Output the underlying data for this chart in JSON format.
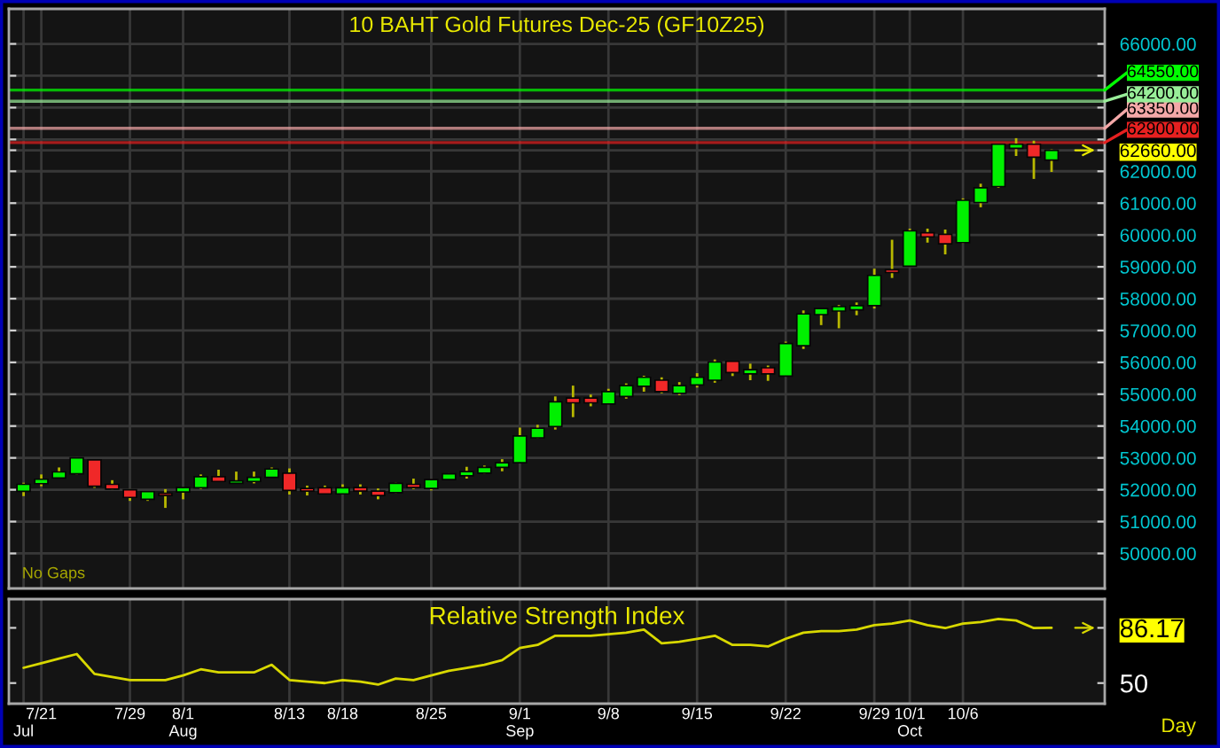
{
  "chart_data": [
    {
      "type": "candlestick",
      "title": "10 BAHT Gold Futures Dec-25 (GF10Z25)",
      "categories": [
        null,
        null,
        null,
        null,
        null,
        null,
        null,
        null,
        null,
        null,
        null,
        null,
        null,
        null,
        null,
        null,
        null,
        null,
        null,
        null,
        null,
        null,
        null,
        null,
        null,
        null,
        null,
        null,
        null,
        null,
        null,
        null,
        null,
        null,
        null,
        null,
        null,
        null,
        null,
        null,
        null,
        null,
        null,
        null,
        null,
        null,
        null,
        null,
        null,
        null,
        null,
        null,
        null,
        null,
        null,
        null,
        null,
        null,
        null
      ],
      "ohlc": [
        [
          51950,
          52220,
          51800,
          52170
        ],
        [
          52190,
          52480,
          52110,
          52330
        ],
        [
          52370,
          52700,
          52350,
          52560
        ],
        [
          52500,
          53020,
          52480,
          53000
        ],
        [
          52940,
          52960,
          52060,
          52110
        ],
        [
          52170,
          52300,
          52000,
          52020
        ],
        [
          52000,
          52020,
          51650,
          51760
        ],
        [
          51700,
          51950,
          51650,
          51940
        ],
        [
          51890,
          52020,
          51430,
          51820
        ],
        [
          51930,
          52080,
          51700,
          52070
        ],
        [
          52060,
          52480,
          52020,
          52410
        ],
        [
          52410,
          52630,
          52240,
          52260
        ],
        [
          52200,
          52570,
          52200,
          52280
        ],
        [
          52260,
          52570,
          52200,
          52390
        ],
        [
          52390,
          52700,
          52380,
          52650
        ],
        [
          52520,
          52670,
          51850,
          51980
        ],
        [
          52040,
          52130,
          51820,
          51960
        ],
        [
          52060,
          52130,
          51860,
          51870
        ],
        [
          51870,
          52170,
          51850,
          52060
        ],
        [
          52070,
          52170,
          51850,
          51960
        ],
        [
          51960,
          52040,
          51700,
          51820
        ],
        [
          51910,
          52220,
          51890,
          52200
        ],
        [
          52170,
          52350,
          52020,
          52070
        ],
        [
          52040,
          52330,
          51980,
          52320
        ],
        [
          52320,
          52520,
          52300,
          52500
        ],
        [
          52440,
          52720,
          52350,
          52570
        ],
        [
          52520,
          52760,
          52500,
          52700
        ],
        [
          52700,
          52960,
          52580,
          52850
        ],
        [
          52850,
          53950,
          52840,
          53690
        ],
        [
          53630,
          54040,
          53620,
          53930
        ],
        [
          53980,
          54930,
          53890,
          54760
        ],
        [
          54880,
          55270,
          54280,
          54730
        ],
        [
          54880,
          54990,
          54620,
          54730
        ],
        [
          54690,
          55170,
          54680,
          55080
        ],
        [
          54930,
          55340,
          54860,
          55270
        ],
        [
          55250,
          55580,
          55080,
          55530
        ],
        [
          55440,
          55530,
          55030,
          55080
        ],
        [
          55030,
          55380,
          54970,
          55270
        ],
        [
          55290,
          55660,
          55210,
          55530
        ],
        [
          55440,
          56090,
          55360,
          56010
        ],
        [
          56030,
          56050,
          55570,
          55680
        ],
        [
          55640,
          55960,
          55440,
          55770
        ],
        [
          55830,
          55900,
          55420,
          55640
        ],
        [
          55570,
          56650,
          55550,
          56590
        ],
        [
          56520,
          57630,
          56420,
          57520
        ],
        [
          57500,
          57690,
          57170,
          57690
        ],
        [
          57610,
          57800,
          57070,
          57750
        ],
        [
          57650,
          57880,
          57480,
          57780
        ],
        [
          57780,
          58940,
          57690,
          58730
        ],
        [
          58910,
          59850,
          58650,
          58820
        ],
        [
          59020,
          60200,
          59000,
          60130
        ],
        [
          60070,
          60200,
          59760,
          59940
        ],
        [
          60020,
          60170,
          59390,
          59720
        ],
        [
          59760,
          61150,
          59740,
          61090
        ],
        [
          61020,
          61610,
          60870,
          61480
        ],
        [
          61520,
          62870,
          61480,
          62850
        ],
        [
          62720,
          63040,
          62480,
          62850
        ],
        [
          62850,
          62960,
          61760,
          62440
        ],
        [
          62350,
          62690,
          61980,
          62660
        ]
      ],
      "colors": [
        "#00f000",
        "#00f000",
        "#00f000",
        "#00f000",
        "#f02828",
        "#f02828",
        "#f02828",
        "#00f000",
        "#f02828",
        "#00f000",
        "#00f000",
        "#f02828",
        "#00f000",
        "#00f000",
        "#00f000",
        "#f02828",
        "#f02828",
        "#f02828",
        "#00f000",
        "#f02828",
        "#f02828",
        "#00f000",
        "#f02828",
        "#00f000",
        "#00f000",
        "#00f000",
        "#00f000",
        "#00f000",
        "#00f000",
        "#00f000",
        "#00f000",
        "#f02828",
        "#f02828",
        "#00f000",
        "#00f000",
        "#00f000",
        "#f02828",
        "#00f000",
        "#00f000",
        "#00f000",
        "#f02828",
        "#00f000",
        "#f02828",
        "#00f000",
        "#00f000",
        "#00f000",
        "#00f000",
        "#00f000",
        "#00f000",
        "#f02828",
        "#00f000",
        "#f02828",
        "#f02828",
        "#00f000",
        "#00f000",
        "#00f000",
        "#00f000",
        "#f02828",
        "#00f000"
      ],
      "ylim": [
        48900,
        67100
      ],
      "yticks": [
        {
          "value": 50000,
          "label": "50000.00"
        },
        {
          "value": 51000,
          "label": "51000.00"
        },
        {
          "value": 52000,
          "label": "52000.00"
        },
        {
          "value": 53000,
          "label": "53000.00"
        },
        {
          "value": 54000,
          "label": "54000.00"
        },
        {
          "value": 55000,
          "label": "55000.00"
        },
        {
          "value": 56000,
          "label": "56000.00"
        },
        {
          "value": 57000,
          "label": "57000.00"
        },
        {
          "value": 58000,
          "label": "58000.00"
        },
        {
          "value": 59000,
          "label": "59000.00"
        },
        {
          "value": 60000,
          "label": "60000.00"
        },
        {
          "value": 61000,
          "label": "61000.00"
        },
        {
          "value": 62000,
          "label": "62000.00"
        },
        {
          "value": 62660,
          "label": "62660.00"
        },
        {
          "value": 63000,
          "label": null
        },
        {
          "value": 64000,
          "label": null
        },
        {
          "value": 65000,
          "label": null
        },
        {
          "value": 66000,
          "label": "66000.00"
        }
      ],
      "grid": true,
      "tick_labels": "y",
      "legend": "right",
      "ref_lines": [
        {
          "axis": "y",
          "value": 64550,
          "label": "64550.00",
          "color": "#00ff00"
        },
        {
          "axis": "y",
          "value": 64200,
          "label": "64200.00",
          "color": "#99ee99"
        },
        {
          "axis": "y",
          "value": 63350,
          "label": "63350.00",
          "color": "#f4a8a8"
        },
        {
          "axis": "y",
          "value": 62900,
          "label": "62900.00",
          "color": "#e62020"
        }
      ],
      "annotations": [
        "No Gaps"
      ]
    },
    {
      "type": "line",
      "title": "Relative Strength Index",
      "categories": [
        "\nJul",
        "7/21",
        null,
        null,
        null,
        null,
        "7/29",
        null,
        null,
        "8/1\nAug",
        null,
        null,
        null,
        null,
        null,
        "8/13",
        null,
        null,
        "8/18",
        null,
        null,
        null,
        null,
        "8/25",
        null,
        null,
        null,
        null,
        "9/1\nSep",
        null,
        null,
        null,
        null,
        "9/8",
        null,
        null,
        null,
        null,
        "9/15",
        null,
        null,
        null,
        null,
        "9/22",
        null,
        null,
        null,
        null,
        "9/29",
        null,
        "10/1\nOct",
        null,
        null,
        "10/6",
        null,
        null,
        null,
        null,
        null
      ],
      "series": [
        {
          "color": "#d8d800",
          "values": [
            60,
            63,
            66,
            69,
            56,
            54,
            52,
            52,
            52,
            55,
            59,
            57,
            57,
            57,
            62,
            52,
            51,
            50,
            52,
            51,
            49,
            53,
            52,
            55,
            58,
            60,
            62,
            65,
            73,
            75,
            81,
            81,
            81,
            82,
            83,
            85,
            76,
            77,
            79,
            81,
            75,
            75,
            74,
            79,
            83,
            84,
            84,
            85,
            88,
            89,
            91,
            88,
            86,
            89,
            90,
            92,
            91,
            86,
            86.17
          ]
        }
      ],
      "ylim": [
        36.5,
        105
      ],
      "yticks": [
        50,
        86.17
      ],
      "grid": "x",
      "annotations": [
        "Day"
      ]
    }
  ]
}
